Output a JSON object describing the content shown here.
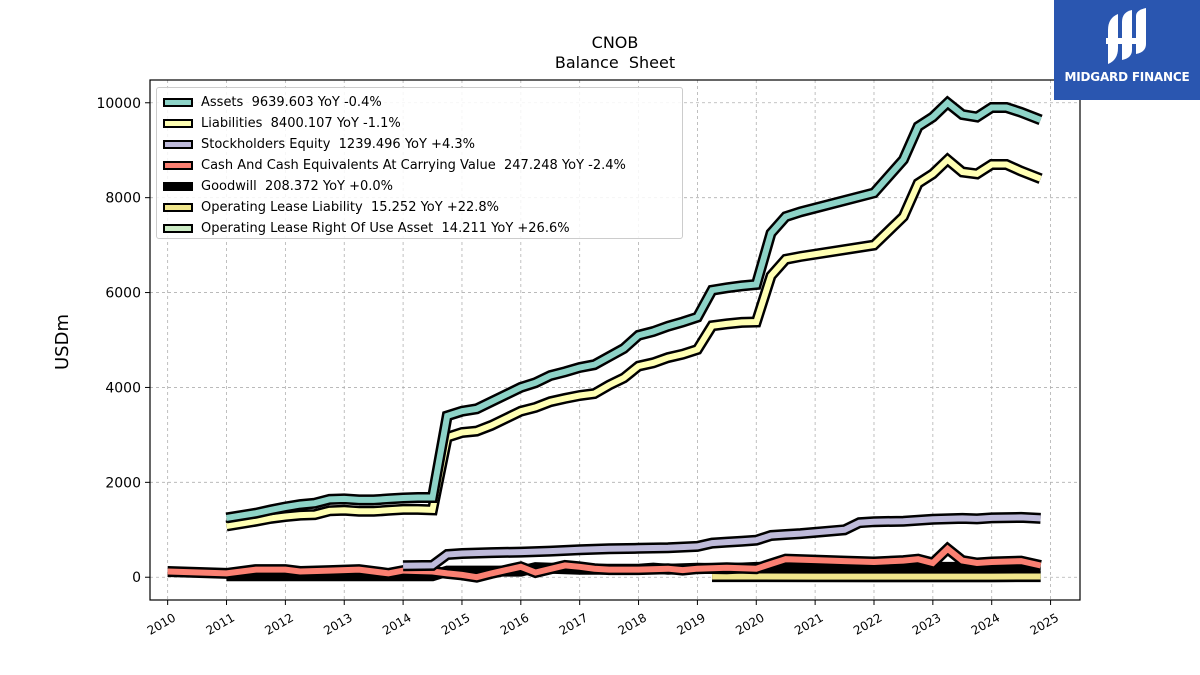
{
  "chart_data": {
    "type": "line",
    "title": "CNOB",
    "subtitle": "Balance  Sheet",
    "ylabel": "USDm",
    "xlabel": "",
    "xlim": [
      2009.7,
      2025.5
    ],
    "ylim": [
      -480,
      10480
    ],
    "yticks": [
      0,
      2000,
      4000,
      6000,
      8000,
      10000
    ],
    "xticks": [
      "2010",
      "2011",
      "2012",
      "2013",
      "2014",
      "2015",
      "2016",
      "2017",
      "2018",
      "2019",
      "2020",
      "2021",
      "2022",
      "2023",
      "2024",
      "2025"
    ],
    "grid": true,
    "legend_position": "top-left",
    "series": [
      {
        "name": "Assets",
        "legend": "Assets  9639.603 YoY -0.4%",
        "color": "#8dd3c7",
        "x": [
          2011.0,
          2011.5,
          2011.75,
          2012.0,
          2012.25,
          2012.5,
          2012.75,
          2013.0,
          2013.25,
          2013.5,
          2013.75,
          2014.0,
          2014.25,
          2014.5,
          2014.75,
          2015.0,
          2015.25,
          2015.5,
          2015.75,
          2016.0,
          2016.25,
          2016.5,
          2016.75,
          2017.0,
          2017.25,
          2017.5,
          2017.75,
          2018.0,
          2018.25,
          2018.5,
          2018.75,
          2019.0,
          2019.25,
          2019.5,
          2019.75,
          2020.0,
          2020.25,
          2020.5,
          2020.75,
          2022.0,
          2022.5,
          2022.75,
          2023.0,
          2023.25,
          2023.5,
          2023.75,
          2024.0,
          2024.25,
          2024.5,
          2024.83
        ],
        "values": [
          1250,
          1350,
          1420,
          1480,
          1530,
          1560,
          1640,
          1650,
          1630,
          1630,
          1650,
          1670,
          1680,
          1680,
          3400,
          3500,
          3550,
          3700,
          3850,
          4000,
          4100,
          4250,
          4330,
          4420,
          4480,
          4650,
          4820,
          5100,
          5180,
          5290,
          5380,
          5480,
          6050,
          6100,
          6140,
          6170,
          7250,
          7600,
          7700,
          8100,
          8800,
          9500,
          9700,
          10000,
          9750,
          9700,
          9900,
          9900,
          9800,
          9639.603
        ]
      },
      {
        "name": "Liabilities",
        "legend": "Liabilities  8400.107 YoY -1.1%",
        "color": "#ffffb3",
        "x": [
          2011.0,
          2011.5,
          2011.75,
          2012.0,
          2012.25,
          2012.5,
          2012.75,
          2013.0,
          2013.25,
          2013.5,
          2013.75,
          2014.0,
          2014.25,
          2014.5,
          2014.75,
          2015.0,
          2015.25,
          2015.5,
          2015.75,
          2016.0,
          2016.25,
          2016.5,
          2016.75,
          2017.0,
          2017.25,
          2017.5,
          2017.75,
          2018.0,
          2018.25,
          2018.5,
          2018.75,
          2019.0,
          2019.25,
          2019.5,
          2019.75,
          2020.0,
          2020.25,
          2020.5,
          2020.75,
          2022.0,
          2022.5,
          2022.75,
          2023.0,
          2023.25,
          2023.5,
          2023.75,
          2024.0,
          2024.25,
          2024.5,
          2024.83
        ],
        "values": [
          1080,
          1180,
          1240,
          1280,
          1310,
          1320,
          1400,
          1410,
          1390,
          1390,
          1410,
          1430,
          1430,
          1420,
          2950,
          3050,
          3080,
          3200,
          3350,
          3500,
          3580,
          3700,
          3770,
          3830,
          3870,
          4050,
          4200,
          4450,
          4520,
          4630,
          4700,
          4800,
          5300,
          5340,
          5370,
          5380,
          6350,
          6700,
          6760,
          7000,
          7600,
          8300,
          8500,
          8800,
          8540,
          8500,
          8700,
          8700,
          8560,
          8400.107
        ]
      },
      {
        "name": "Stockholders Equity",
        "legend": "Stockholders Equity  1239.496 YoY +4.3%",
        "color": "#bebada",
        "x": [
          2014.0,
          2014.5,
          2014.75,
          2015.0,
          2015.5,
          2016.0,
          2016.5,
          2017.0,
          2017.5,
          2018.0,
          2018.5,
          2019.0,
          2019.25,
          2019.5,
          2019.75,
          2020.0,
          2020.25,
          2020.5,
          2020.75,
          2021.5,
          2021.75,
          2022.0,
          2022.5,
          2023.0,
          2023.5,
          2023.75,
          2024.0,
          2024.5,
          2024.83
        ],
        "values": [
          240,
          250,
          480,
          500,
          520,
          530,
          550,
          580,
          600,
          610,
          620,
          650,
          720,
          740,
          760,
          780,
          880,
          900,
          920,
          1000,
          1150,
          1170,
          1180,
          1220,
          1240,
          1230,
          1250,
          1260,
          1239.496
        ]
      },
      {
        "name": "Cash And Cash Equivalents At Carrying Value",
        "legend": "Cash And Cash Equivalents At Carrying Value  247.248 YoY -2.4%",
        "color": "#fb8072",
        "x": [
          2010.0,
          2011.0,
          2011.5,
          2012.0,
          2012.25,
          2012.75,
          2013.0,
          2013.25,
          2013.75,
          2014.0,
          2014.5,
          2014.75,
          2015.0,
          2015.25,
          2015.5,
          2015.75,
          2016.0,
          2016.25,
          2016.75,
          2017.0,
          2017.25,
          2017.5,
          2018.0,
          2018.5,
          2018.75,
          2019.0,
          2019.5,
          2020.0,
          2020.25,
          2020.5,
          2021.0,
          2021.5,
          2022.0,
          2022.5,
          2022.75,
          2023.0,
          2023.25,
          2023.5,
          2023.75,
          2024.0,
          2024.5,
          2024.83
        ],
        "values": [
          120,
          80,
          160,
          160,
          120,
          140,
          150,
          160,
          80,
          140,
          120,
          80,
          50,
          0,
          80,
          150,
          220,
          100,
          250,
          220,
          180,
          160,
          160,
          180,
          150,
          180,
          200,
          180,
          280,
          380,
          360,
          340,
          320,
          350,
          380,
          300,
          600,
          350,
          300,
          320,
          340,
          247.248
        ]
      },
      {
        "name": "Goodwill",
        "legend": "Goodwill  208.372 YoY +0.0%",
        "color": "#000000",
        "x": [
          2011.0,
          2014.5,
          2014.75,
          2016.0,
          2016.25,
          2017.0,
          2018.0,
          2018.25,
          2018.5,
          2019.0,
          2019.5,
          2020.0,
          2021.0,
          2022.0,
          2023.0,
          2024.0,
          2024.83
        ],
        "values": [
          30,
          30,
          130,
          130,
          200,
          170,
          170,
          190,
          170,
          190,
          180,
          208,
          208,
          208,
          208,
          208,
          208.372
        ]
      },
      {
        "name": "Operating Lease Liability",
        "legend": "Operating Lease Liability  15.252 YoY +22.8%",
        "color": "#f0e68c",
        "x": [
          2019.25,
          2020.0,
          2021.0,
          2022.0,
          2023.0,
          2024.0,
          2024.83
        ],
        "values": [
          15,
          15,
          14,
          13,
          13,
          12.4,
          15.252
        ]
      },
      {
        "name": "Operating Lease Right Of Use Asset",
        "legend": "Operating Lease Right Of Use Asset  14.211 YoY +26.6%",
        "color": "#ccebc5",
        "x": [
          2019.25,
          2020.0,
          2021.0,
          2022.0,
          2023.0,
          2024.0,
          2024.83
        ],
        "values": [
          14,
          14,
          13,
          12,
          12,
          11.2,
          14.211
        ]
      }
    ]
  },
  "logo": {
    "text": "MIDGARD FINANCE",
    "color": "#2a56b0"
  }
}
